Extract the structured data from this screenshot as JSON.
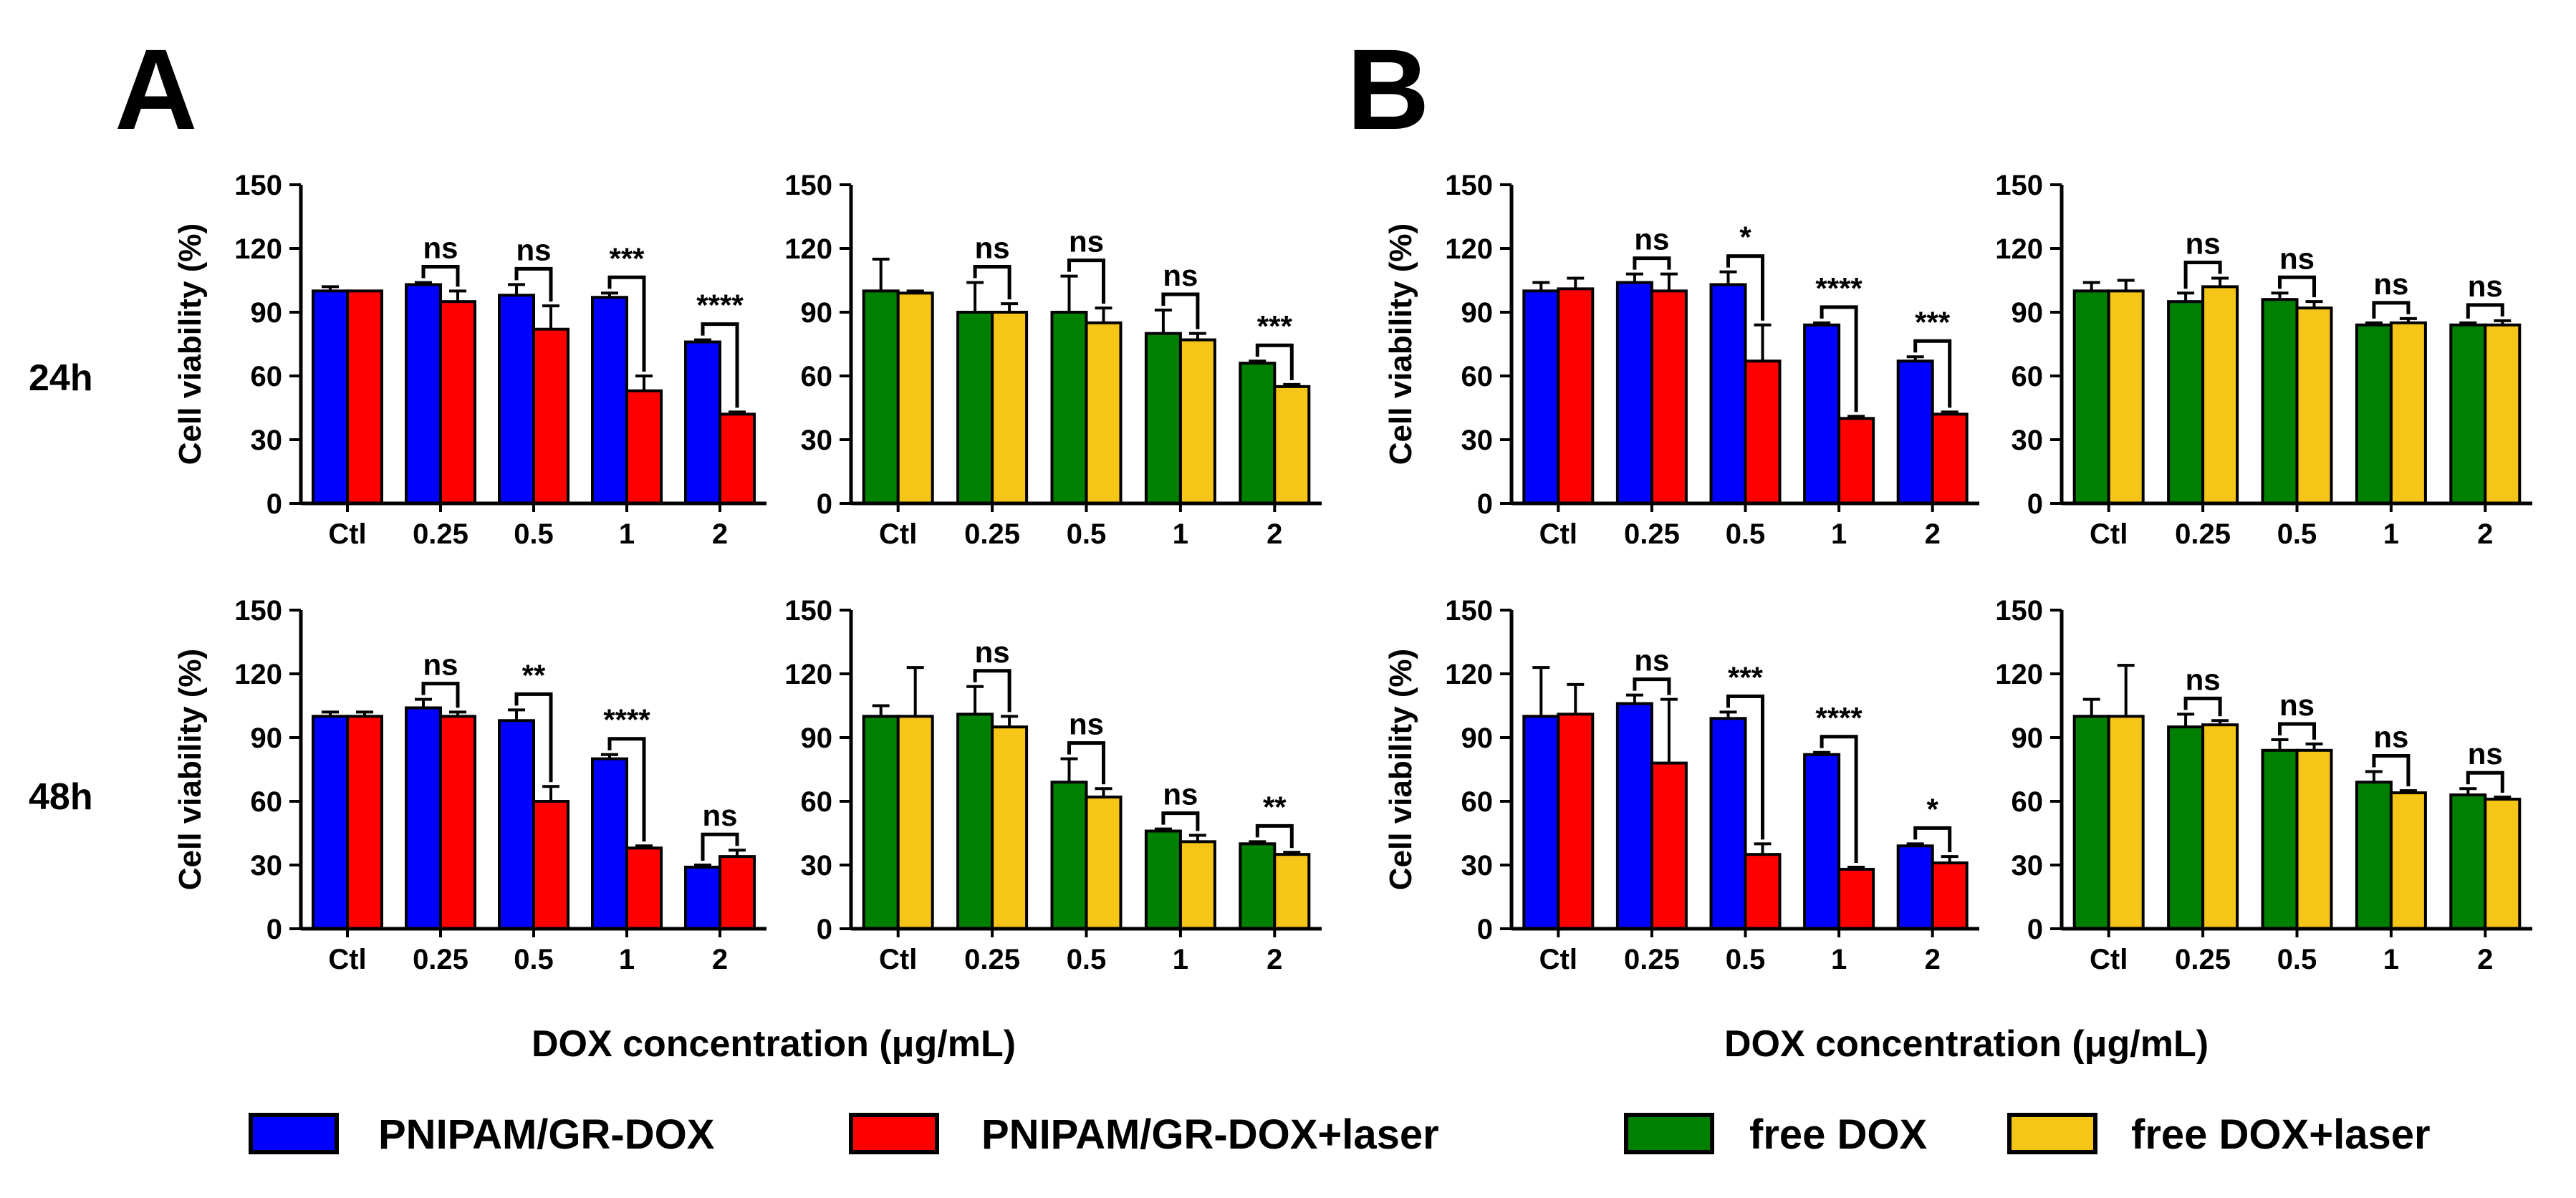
{
  "panels": [
    {
      "letter": "A"
    },
    {
      "letter": "B"
    }
  ],
  "row_labels": [
    "24h",
    "48h"
  ],
  "x_axis_title": "DOX concentration (μg/mL)",
  "legend": {
    "items": [
      {
        "label": "PNIPAM/GR-DOX",
        "color": "#0000ff"
      },
      {
        "label": "PNIPAM/GR-DOX+laser",
        "color": "#ff0000"
      },
      {
        "label": "free DOX",
        "color": "#008000"
      },
      {
        "label": "free DOX+laser",
        "color": "#f5c518"
      }
    ]
  },
  "chart_data": [
    {
      "id": "A-24h-gr",
      "type": "bar",
      "panel": "A",
      "time": "24h",
      "ylabel": "Cell viability (%)",
      "ylim": [
        0,
        150
      ],
      "yticks": [
        0,
        30,
        60,
        90,
        120,
        150
      ],
      "categories": [
        "Ctl",
        "0.25",
        "0.5",
        "1",
        "2"
      ],
      "series": [
        {
          "name": "PNIPAM/GR-DOX",
          "color": "#0000ff",
          "values": [
            100,
            103,
            98,
            97,
            76
          ],
          "errors": [
            2,
            1,
            5,
            2,
            1
          ]
        },
        {
          "name": "PNIPAM/GR-DOX+laser",
          "color": "#ff0000",
          "values": [
            100,
            95,
            82,
            53,
            42
          ],
          "errors": [
            0,
            5,
            11,
            7,
            1
          ]
        }
      ],
      "annotations": [
        "ns",
        "ns",
        "***",
        "****"
      ]
    },
    {
      "id": "A-24h-free",
      "type": "bar",
      "panel": "A",
      "time": "24h",
      "ylabel": "",
      "ylim": [
        0,
        150
      ],
      "yticks": [
        0,
        30,
        60,
        90,
        120,
        150
      ],
      "categories": [
        "Ctl",
        "0.25",
        "0.5",
        "1",
        "2"
      ],
      "series": [
        {
          "name": "free DOX",
          "color": "#008000",
          "values": [
            100,
            90,
            90,
            80,
            66
          ],
          "errors": [
            15,
            14,
            17,
            11,
            1
          ]
        },
        {
          "name": "free DOX+laser",
          "color": "#f5c518",
          "values": [
            99,
            90,
            85,
            77,
            55
          ],
          "errors": [
            1,
            4,
            7,
            3,
            1
          ]
        }
      ],
      "annotations": [
        "ns",
        "ns",
        "ns",
        "***"
      ]
    },
    {
      "id": "B-24h-gr",
      "type": "bar",
      "panel": "B",
      "time": "24h",
      "ylabel": "Cell viability (%)",
      "ylim": [
        0,
        150
      ],
      "yticks": [
        0,
        30,
        60,
        90,
        120,
        150
      ],
      "categories": [
        "Ctl",
        "0.25",
        "0.5",
        "1",
        "2"
      ],
      "series": [
        {
          "name": "PNIPAM/GR-DOX",
          "color": "#0000ff",
          "values": [
            100,
            104,
            103,
            84,
            67
          ],
          "errors": [
            4,
            4,
            6,
            1,
            2
          ]
        },
        {
          "name": "PNIPAM/GR-DOX+laser",
          "color": "#ff0000",
          "values": [
            101,
            100,
            67,
            40,
            42
          ],
          "errors": [
            5,
            8,
            17,
            1,
            1
          ]
        }
      ],
      "annotations": [
        "ns",
        "*",
        "****",
        "***"
      ]
    },
    {
      "id": "B-24h-free",
      "type": "bar",
      "panel": "B",
      "time": "24h",
      "ylabel": "",
      "ylim": [
        0,
        150
      ],
      "yticks": [
        0,
        30,
        60,
        90,
        120,
        150
      ],
      "categories": [
        "Ctl",
        "0.25",
        "0.5",
        "1",
        "2"
      ],
      "series": [
        {
          "name": "free DOX",
          "color": "#008000",
          "values": [
            100,
            95,
            96,
            84,
            84
          ],
          "errors": [
            4,
            4,
            3,
            1,
            1
          ]
        },
        {
          "name": "free DOX+laser",
          "color": "#f5c518",
          "values": [
            100,
            102,
            92,
            85,
            84
          ],
          "errors": [
            5,
            4,
            3,
            2,
            2
          ]
        }
      ],
      "annotations": [
        "ns",
        "ns",
        "ns",
        "ns"
      ]
    },
    {
      "id": "A-48h-gr",
      "type": "bar",
      "panel": "A",
      "time": "48h",
      "ylabel": "Cell viability (%)",
      "ylim": [
        0,
        150
      ],
      "yticks": [
        0,
        30,
        60,
        90,
        120,
        150
      ],
      "categories": [
        "Ctl",
        "0.25",
        "0.5",
        "1",
        "2"
      ],
      "series": [
        {
          "name": "PNIPAM/GR-DOX",
          "color": "#0000ff",
          "values": [
            100,
            104,
            98,
            80,
            29
          ],
          "errors": [
            2,
            4,
            5,
            2,
            1
          ]
        },
        {
          "name": "PNIPAM/GR-DOX+laser",
          "color": "#ff0000",
          "values": [
            100,
            100,
            60,
            38,
            34
          ],
          "errors": [
            2,
            2,
            7,
            1,
            3
          ]
        }
      ],
      "annotations": [
        "ns",
        "**",
        "****",
        "ns"
      ]
    },
    {
      "id": "A-48h-free",
      "type": "bar",
      "panel": "A",
      "time": "48h",
      "ylabel": "",
      "ylim": [
        0,
        150
      ],
      "yticks": [
        0,
        30,
        60,
        90,
        120,
        150
      ],
      "categories": [
        "Ctl",
        "0.25",
        "0.5",
        "1",
        "2"
      ],
      "series": [
        {
          "name": "free DOX",
          "color": "#008000",
          "values": [
            100,
            101,
            69,
            46,
            40
          ],
          "errors": [
            5,
            13,
            11,
            1,
            1
          ]
        },
        {
          "name": "free DOX+laser",
          "color": "#f5c518",
          "values": [
            100,
            95,
            62,
            41,
            35
          ],
          "errors": [
            23,
            5,
            4,
            3,
            1
          ]
        }
      ],
      "annotations": [
        "ns",
        "ns",
        "ns",
        "**"
      ]
    },
    {
      "id": "B-48h-gr",
      "type": "bar",
      "panel": "B",
      "time": "48h",
      "ylabel": "Cell viability (%)",
      "ylim": [
        0,
        150
      ],
      "yticks": [
        0,
        30,
        60,
        90,
        120,
        150
      ],
      "categories": [
        "Ctl",
        "0.25",
        "0.5",
        "1",
        "2"
      ],
      "series": [
        {
          "name": "PNIPAM/GR-DOX",
          "color": "#0000ff",
          "values": [
            100,
            106,
            99,
            82,
            39
          ],
          "errors": [
            23,
            4,
            3,
            1,
            1
          ]
        },
        {
          "name": "PNIPAM/GR-DOX+laser",
          "color": "#ff0000",
          "values": [
            101,
            78,
            35,
            28,
            31
          ],
          "errors": [
            14,
            30,
            5,
            1,
            3
          ]
        }
      ],
      "annotations": [
        "ns",
        "***",
        "****",
        "*"
      ]
    },
    {
      "id": "B-48h-free",
      "type": "bar",
      "panel": "B",
      "time": "48h",
      "ylabel": "",
      "ylim": [
        0,
        150
      ],
      "yticks": [
        0,
        30,
        60,
        90,
        120,
        150
      ],
      "categories": [
        "Ctl",
        "0.25",
        "0.5",
        "1",
        "2"
      ],
      "series": [
        {
          "name": "free DOX",
          "color": "#008000",
          "values": [
            100,
            95,
            84,
            69,
            63
          ],
          "errors": [
            8,
            6,
            5,
            5,
            3
          ]
        },
        {
          "name": "free DOX+laser",
          "color": "#f5c518",
          "values": [
            100,
            96,
            84,
            64,
            61
          ],
          "errors": [
            24,
            2,
            3,
            1,
            1
          ]
        }
      ],
      "annotations": [
        "ns",
        "ns",
        "ns",
        "ns"
      ]
    }
  ]
}
